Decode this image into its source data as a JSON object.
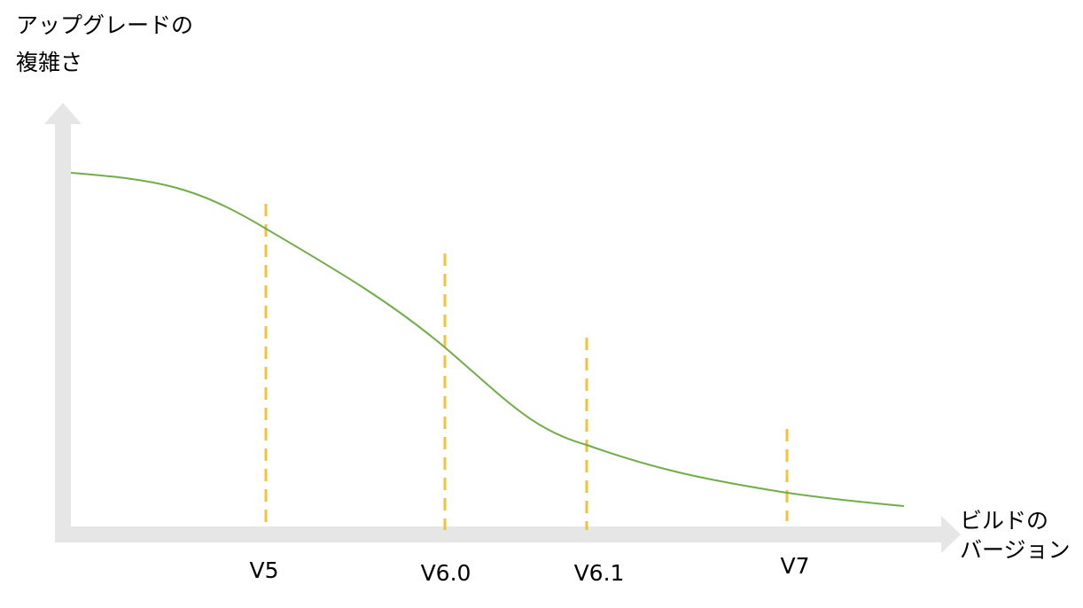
{
  "y_axis_label": [
    "アップグレードの",
    "複雑さ"
  ],
  "x_axis_label": [
    "ビルドの",
    "バージョン"
  ],
  "versions": [
    "V5",
    "V6.0",
    "V6.1",
    "V7"
  ]
}
